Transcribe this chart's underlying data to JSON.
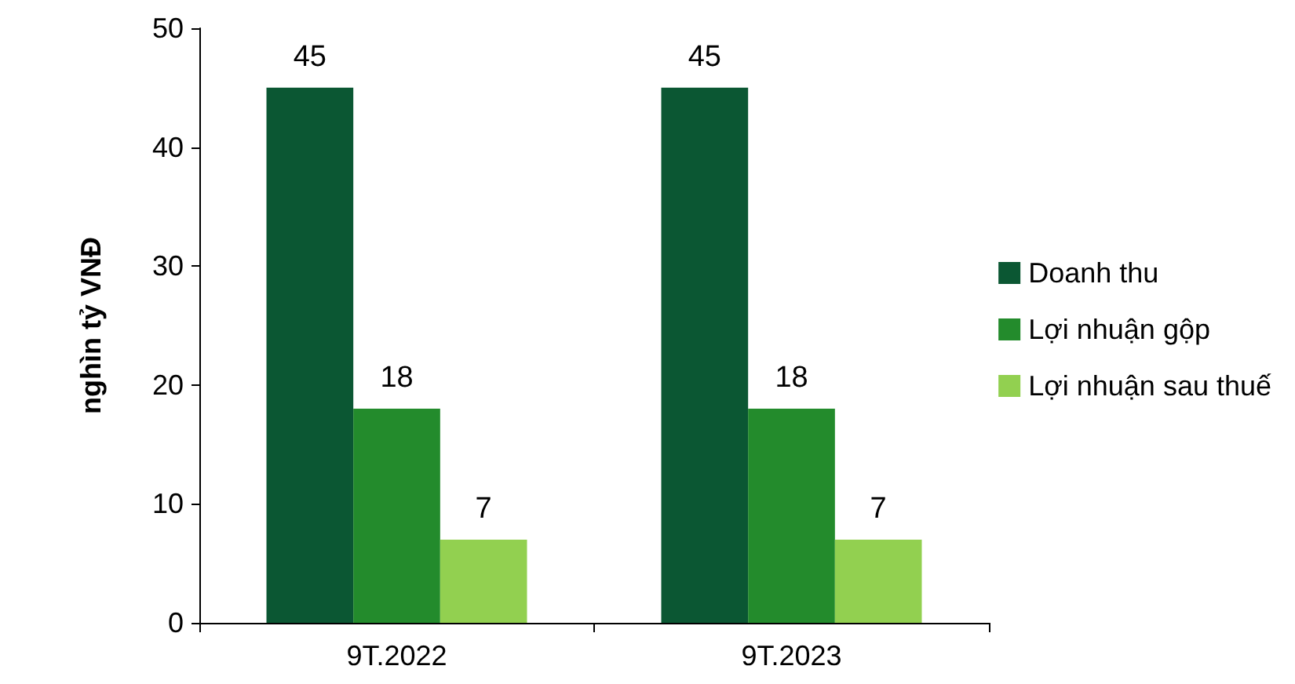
{
  "chart_data": {
    "type": "bar",
    "ylabel": "nghìn tỷ VNĐ",
    "categories": [
      "9T.2022",
      "9T.2023"
    ],
    "series": [
      {
        "name": "Doanh thu",
        "color": "#0b5733",
        "values": [
          45,
          45
        ]
      },
      {
        "name": "Lợi nhuận gộp",
        "color": "#238b2c",
        "values": [
          18,
          18
        ]
      },
      {
        "name": "Lợi nhuận sau thuế",
        "color": "#92d050",
        "values": [
          7,
          7
        ]
      }
    ],
    "ylim": [
      0,
      50
    ],
    "yticks": [
      0,
      10,
      20,
      30,
      40,
      50
    ],
    "grid": false,
    "legend": "right",
    "data_labels": true
  }
}
